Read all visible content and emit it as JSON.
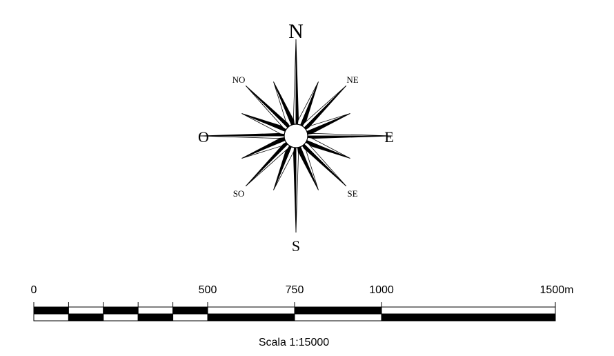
{
  "compass": {
    "north": "N",
    "south": "S",
    "east": "E",
    "west": "O",
    "northeast": "NE",
    "northwest": "NO",
    "southeast": "SE",
    "southwest": "SO"
  },
  "scale_bar": {
    "labels": [
      {
        "text": "0",
        "value": 0
      },
      {
        "text": "500",
        "value": 500
      },
      {
        "text": "750",
        "value": 750
      },
      {
        "text": "1000",
        "value": 1000
      },
      {
        "text": "1500m",
        "value": 1500
      }
    ],
    "segments_m": [
      0,
      100,
      200,
      300,
      400,
      500,
      750,
      1000,
      1500
    ],
    "max_m": 1500,
    "caption": "Scala 1:15000"
  },
  "colors": {
    "ink": "#000000",
    "paper": "#ffffff"
  }
}
